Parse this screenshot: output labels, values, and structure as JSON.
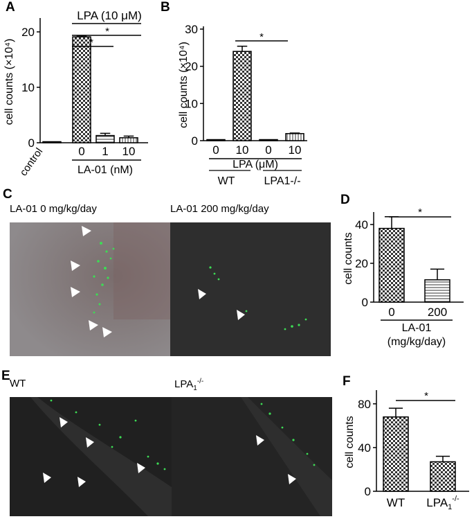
{
  "panels": {
    "A": "A",
    "B": "B",
    "C": "C",
    "D": "D",
    "E": "E",
    "F": "F"
  },
  "colors": {
    "bar_dark": "#333333",
    "bar_light": "#dddddd",
    "arrow": "#ffffff",
    "signal": "#39d353"
  },
  "images": {
    "C_left_caption": "LA-01  0 mg/kg/day",
    "C_right_caption": "LA-01  200 mg/kg/day",
    "E_left_caption": "WT",
    "E_right_caption_main": "LPA",
    "E_right_caption_sub": "1",
    "E_right_caption_sup": "-/-"
  },
  "chart_data": [
    {
      "id": "A",
      "type": "bar",
      "categories": [
        "control",
        "0",
        "1",
        "10"
      ],
      "values": [
        0.05,
        19.1,
        1.3,
        0.9
      ],
      "errors": [
        0,
        0.2,
        0.4,
        0.3
      ],
      "patterns": [
        "solid",
        "checker",
        "horizontal",
        "vertical"
      ],
      "ylabel": "cell counts (×10⁴)",
      "ylim": [
        0,
        22
      ],
      "yticks": [
        0,
        10,
        20
      ],
      "header": "LPA (10 μM)",
      "group_label": "LA-01 (nM)",
      "significance": [
        "*",
        "*"
      ]
    },
    {
      "id": "B",
      "type": "bar",
      "categories": [
        "0",
        "10",
        "0",
        "10"
      ],
      "values": [
        0.2,
        24.0,
        0.15,
        1.9
      ],
      "errors": [
        0,
        1.4,
        0,
        0.15
      ],
      "patterns": [
        "checker",
        "checker",
        "vertical",
        "vertical"
      ],
      "ylabel": "cell counts (×10⁴)",
      "ylim": [
        0,
        30
      ],
      "yticks": [
        0,
        10,
        20,
        30
      ],
      "group_label": "LPA (μM)",
      "genotypes": [
        "WT",
        "LPA1-/-"
      ],
      "significance": [
        "*"
      ]
    },
    {
      "id": "D",
      "type": "bar",
      "categories": [
        "0",
        "200"
      ],
      "values": [
        38,
        11.5
      ],
      "errors": [
        6,
        5.5
      ],
      "patterns": [
        "checker",
        "horizontal"
      ],
      "ylabel": "cell counts",
      "ylim": [
        0,
        45
      ],
      "yticks": [
        0,
        20,
        40
      ],
      "group_label_1": "LA-01",
      "group_label_2": "(mg/kg/day)",
      "significance": [
        "*"
      ]
    },
    {
      "id": "F",
      "type": "bar",
      "categories": [
        "WT",
        "LPA1-/-"
      ],
      "values": [
        68,
        27
      ],
      "errors": [
        8,
        5
      ],
      "patterns": [
        "checker",
        "checker"
      ],
      "ylabel": "cell counts",
      "ylim": [
        0,
        90
      ],
      "yticks": [
        0,
        40,
        80
      ],
      "significance": [
        "*"
      ]
    }
  ]
}
